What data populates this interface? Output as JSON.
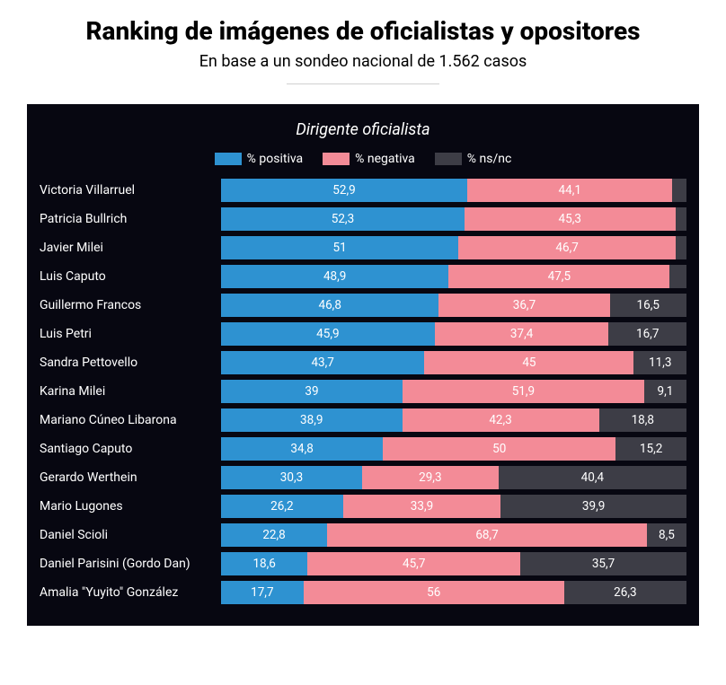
{
  "header": {
    "title": "Ranking de imágenes de oficialistas y opositores",
    "subtitle": "En base a un sondeo nacional de 1.562 casos"
  },
  "chart": {
    "type": "stacked-bar-horizontal",
    "title": "Dirigente oficialista",
    "background_color": "#070711",
    "legend": [
      {
        "label": "% positiva",
        "color": "#2e92d1"
      },
      {
        "label": "% negativa",
        "color": "#f38b97"
      },
      {
        "label": "% ns/nc",
        "color": "#3d3d46"
      }
    ],
    "label_suppress_below": 5,
    "rows": [
      {
        "name": "Victoria Villarruel",
        "positiva": 52.9,
        "negativa": 44.1,
        "nsnc": 3.0,
        "positiva_label": "52,9",
        "negativa_label": "44,1",
        "nsnc_label": ""
      },
      {
        "name": "Patricia Bullrich",
        "positiva": 52.3,
        "negativa": 45.3,
        "nsnc": 2.4,
        "positiva_label": "52,3",
        "negativa_label": "45,3",
        "nsnc_label": ""
      },
      {
        "name": "Javier Milei",
        "positiva": 51.0,
        "negativa": 46.7,
        "nsnc": 2.3,
        "positiva_label": "51",
        "negativa_label": "46,7",
        "nsnc_label": ""
      },
      {
        "name": "Luis Caputo",
        "positiva": 48.9,
        "negativa": 47.5,
        "nsnc": 3.6,
        "positiva_label": "48,9",
        "negativa_label": "47,5",
        "nsnc_label": ""
      },
      {
        "name": "Guillermo Francos",
        "positiva": 46.8,
        "negativa": 36.7,
        "nsnc": 16.5,
        "positiva_label": "46,8",
        "negativa_label": "36,7",
        "nsnc_label": "16,5"
      },
      {
        "name": "Luis Petri",
        "positiva": 45.9,
        "negativa": 37.4,
        "nsnc": 16.7,
        "positiva_label": "45,9",
        "negativa_label": "37,4",
        "nsnc_label": "16,7"
      },
      {
        "name": "Sandra Pettovello",
        "positiva": 43.7,
        "negativa": 45.0,
        "nsnc": 11.3,
        "positiva_label": "43,7",
        "negativa_label": "45",
        "nsnc_label": "11,3"
      },
      {
        "name": "Karina Milei",
        "positiva": 39.0,
        "negativa": 51.9,
        "nsnc": 9.1,
        "positiva_label": "39",
        "negativa_label": "51,9",
        "nsnc_label": "9,1"
      },
      {
        "name": "Mariano Cúneo Libarona",
        "positiva": 38.9,
        "negativa": 42.3,
        "nsnc": 18.8,
        "positiva_label": "38,9",
        "negativa_label": "42,3",
        "nsnc_label": "18,8"
      },
      {
        "name": "Santiago Caputo",
        "positiva": 34.8,
        "negativa": 50.0,
        "nsnc": 15.2,
        "positiva_label": "34,8",
        "negativa_label": "50",
        "nsnc_label": "15,2"
      },
      {
        "name": "Gerardo Werthein",
        "positiva": 30.3,
        "negativa": 29.3,
        "nsnc": 40.4,
        "positiva_label": "30,3",
        "negativa_label": "29,3",
        "nsnc_label": "40,4"
      },
      {
        "name": "Mario Lugones",
        "positiva": 26.2,
        "negativa": 33.9,
        "nsnc": 39.9,
        "positiva_label": "26,2",
        "negativa_label": "33,9",
        "nsnc_label": "39,9"
      },
      {
        "name": "Daniel Scioli",
        "positiva": 22.8,
        "negativa": 68.7,
        "nsnc": 8.5,
        "positiva_label": "22,8",
        "negativa_label": "68,7",
        "nsnc_label": "8,5"
      },
      {
        "name": "Daniel Parisini (Gordo Dan)",
        "positiva": 18.6,
        "negativa": 45.7,
        "nsnc": 35.7,
        "positiva_label": "18,6",
        "negativa_label": "45,7",
        "nsnc_label": "35,7"
      },
      {
        "name": "Amalia \"Yuyito\" González",
        "positiva": 17.7,
        "negativa": 56.0,
        "nsnc": 26.3,
        "positiva_label": "17,7",
        "negativa_label": "56",
        "nsnc_label": "26,3"
      }
    ]
  }
}
